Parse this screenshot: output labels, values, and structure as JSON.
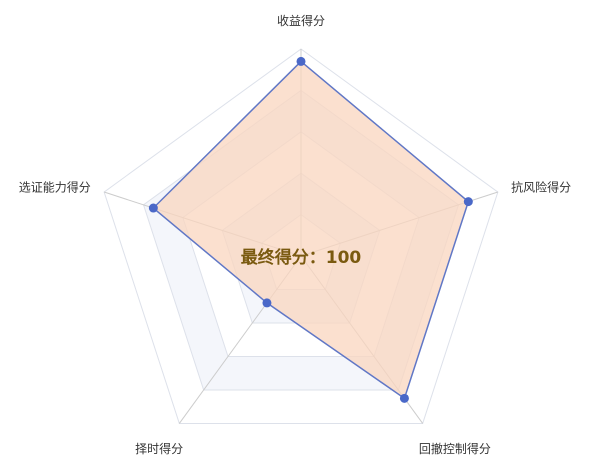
{
  "chart_data": {
    "type": "radar",
    "indicators": [
      {
        "name": "收益得分",
        "max": 100
      },
      {
        "name": "抗风险得分",
        "max": 100
      },
      {
        "name": "回撤控制得分",
        "max": 100
      },
      {
        "name": "择时得分",
        "max": 100
      },
      {
        "name": "选证能力得分",
        "max": 100
      }
    ],
    "values": [
      94,
      85,
      85,
      28,
      75
    ],
    "split_number": 5,
    "center_label": "最终得分：100",
    "colors": {
      "line": "#6077c6",
      "point": "#4a68c8",
      "fill": "#f9d6bf",
      "split_area": [
        "#ffffff",
        "#f4f6fb"
      ],
      "split_line": "#dde1ea",
      "axis_line": "#cccccc",
      "center_label": "#7a5a10"
    }
  }
}
